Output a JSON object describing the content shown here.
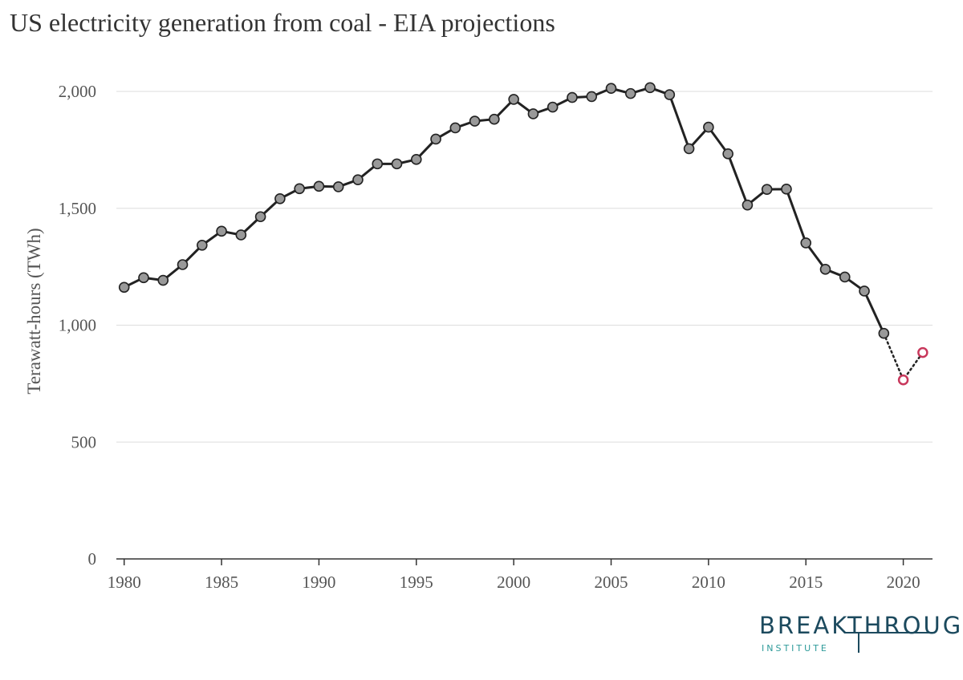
{
  "chart_data": {
    "type": "line",
    "title": "US electricity generation from coal - EIA projections",
    "ylabel": "Terawatt-hours (TWh)",
    "xlabel": "",
    "xlim": [
      1979.6,
      2021.5
    ],
    "ylim": [
      0,
      2000
    ],
    "x_ticks": [
      {
        "value": 1980,
        "label": "1980"
      },
      {
        "value": 1985,
        "label": "1985"
      },
      {
        "value": 1990,
        "label": "1990"
      },
      {
        "value": 1995,
        "label": "1995"
      },
      {
        "value": 2000,
        "label": "2000"
      },
      {
        "value": 2005,
        "label": "2005"
      },
      {
        "value": 2010,
        "label": "2010"
      },
      {
        "value": 2015,
        "label": "2015"
      },
      {
        "value": 2020,
        "label": "2020"
      }
    ],
    "y_ticks": [
      {
        "value": 0,
        "label": "0"
      },
      {
        "value": 500,
        "label": "500"
      },
      {
        "value": 1000,
        "label": "1,000"
      },
      {
        "value": 1500,
        "label": "1,500"
      },
      {
        "value": 2000,
        "label": "2,000"
      }
    ],
    "grid": "horizontal",
    "legend": "none",
    "series": [
      {
        "role": "historical",
        "color": "#222222",
        "marker_fill": "#999999",
        "line_style": "solid",
        "x": [
          1980,
          1981,
          1982,
          1983,
          1984,
          1985,
          1986,
          1987,
          1988,
          1989,
          1990,
          1991,
          1992,
          1993,
          1994,
          1995,
          1996,
          1997,
          1998,
          1999,
          2000,
          2001,
          2002,
          2003,
          2004,
          2005,
          2006,
          2007,
          2008,
          2009,
          2010,
          2011,
          2012,
          2013,
          2014,
          2015,
          2016,
          2017,
          2018,
          2019
        ],
        "values": [
          1162,
          1203,
          1192,
          1259,
          1342,
          1402,
          1386,
          1464,
          1541,
          1584,
          1594,
          1592,
          1622,
          1690,
          1690,
          1709,
          1796,
          1844,
          1873,
          1881,
          1966,
          1904,
          1933,
          1974,
          1978,
          2013,
          1991,
          2016,
          1986,
          1755,
          1847,
          1733,
          1514,
          1581,
          1582,
          1352,
          1239,
          1206,
          1146,
          965
        ]
      },
      {
        "role": "projection",
        "color": "#222222",
        "marker_stroke": "#c8385c",
        "marker_fill": "#ffffff",
        "line_style": "dotted",
        "x": [
          2020,
          2021
        ],
        "values": [
          766,
          883
        ]
      }
    ]
  },
  "logo": {
    "main": "BREAKTHROUGH",
    "sub": "INSTITUTE"
  }
}
